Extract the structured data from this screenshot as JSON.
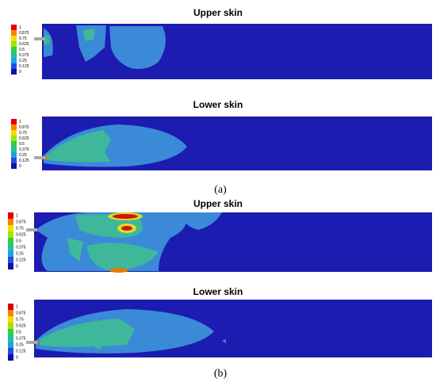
{
  "panels": [
    {
      "label": "(a)",
      "plots": [
        {
          "title": "Upper skin",
          "legend": [
            "1",
            "0.875",
            "0.75",
            "0.625",
            "0.5",
            "0.375",
            "0.25",
            "0.125",
            "0"
          ]
        },
        {
          "title": "Lower skin",
          "legend": [
            "1",
            "0.875",
            "0.75",
            "0.625",
            "0.5",
            "0.375",
            "0.25",
            "0.125",
            "0"
          ]
        }
      ]
    },
    {
      "label": "(b)",
      "plots": [
        {
          "title": "Upper skin",
          "legend": [
            "1",
            "0.875",
            "0.75",
            "0.625",
            "0.5",
            "0.375",
            "0.25",
            "0.125",
            "0"
          ]
        },
        {
          "title": "Lower skin",
          "legend": [
            "1",
            "0.875",
            "0.75",
            "0.625",
            "0.5",
            "0.375",
            "0.25",
            "0.125",
            "0"
          ]
        }
      ]
    }
  ]
}
